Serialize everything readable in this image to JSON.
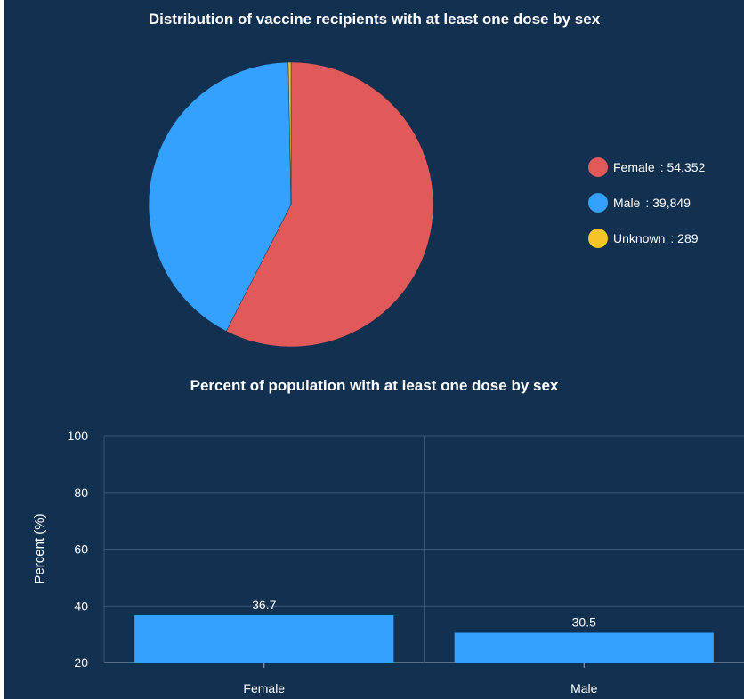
{
  "chart_data": [
    {
      "type": "pie",
      "title": "Distribution of vaccine recipients with at least one dose by sex",
      "slices": [
        {
          "label": "Female",
          "value": 54352,
          "display": "54,352",
          "color": "#e05a5a"
        },
        {
          "label": "Male",
          "value": 39849,
          "display": "39,849",
          "color": "#33a1fd"
        },
        {
          "label": "Unknown",
          "value": 289,
          "display": "289",
          "color": "#f5c526"
        }
      ],
      "legend_position": "right"
    },
    {
      "type": "bar",
      "title": "Percent of population with at least one dose by sex",
      "categories": [
        "Female",
        "Male"
      ],
      "values": [
        36.7,
        30.5
      ],
      "value_labels": [
        "36.7",
        "30.5"
      ],
      "ylabel": "Percent (%)",
      "xlabel": "",
      "ylim": [
        20,
        100
      ],
      "yticks": [
        20,
        40,
        60,
        80,
        100
      ],
      "bar_color": "#33a1fd",
      "grid": true
    }
  ],
  "colors": {
    "background": "#12304f",
    "text": "#ffffff",
    "grid": "#3a5675"
  }
}
